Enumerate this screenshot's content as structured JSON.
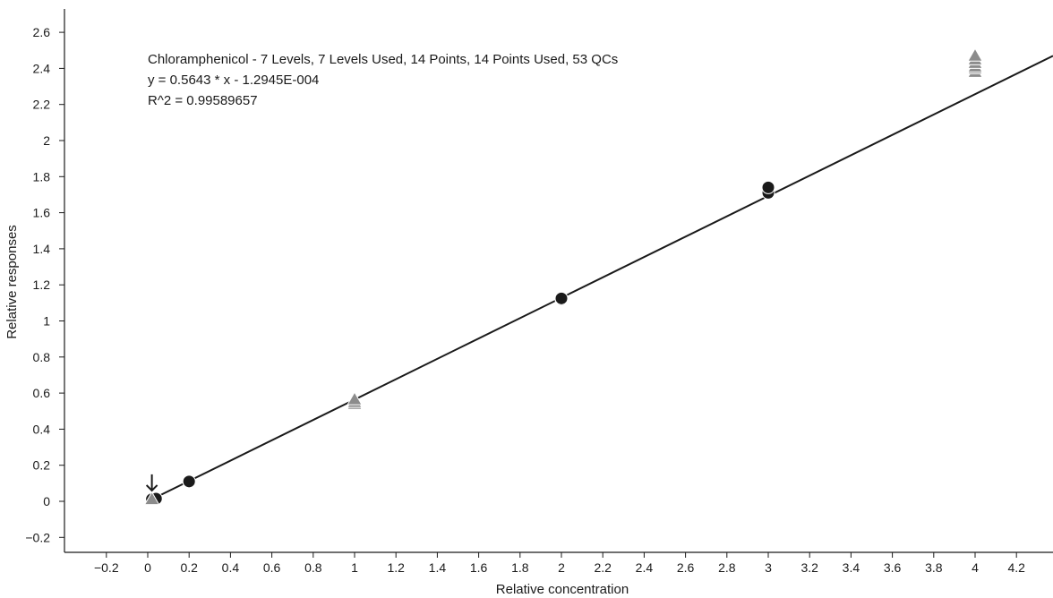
{
  "chart_data": {
    "type": "scatter",
    "title": "",
    "xlabel": "Relative concentration",
    "ylabel": "Relative responses",
    "xlim": [
      -0.35,
      4.35
    ],
    "ylim": [
      -0.25,
      2.77
    ],
    "x_ticks": [
      -0.2,
      0,
      0.2,
      0.4,
      0.6,
      0.8,
      1,
      1.2,
      1.4,
      1.6,
      1.8,
      2,
      2.2,
      2.4,
      2.6,
      2.8,
      3,
      3.2,
      3.4,
      3.6,
      3.8,
      4,
      4.2
    ],
    "x_tick_labels": [
      "−0.2",
      "0",
      "0.2",
      "0.4",
      "0.6",
      "0.8",
      "1",
      "1.2",
      "1.4",
      "1.6",
      "1.8",
      "2",
      "2.2",
      "2.4",
      "2.6",
      "2.8",
      "3",
      "3.2",
      "3.4",
      "3.6",
      "3.8",
      "4",
      "4.2"
    ],
    "y_ticks": [
      -0.2,
      0,
      0.2,
      0.4,
      0.6,
      0.8,
      1,
      1.2,
      1.4,
      1.6,
      1.8,
      2,
      2.2,
      2.4,
      2.6
    ],
    "y_tick_labels": [
      "−0.2",
      "0",
      "0.2",
      "0.4",
      "0.6",
      "0.8",
      "1",
      "1.2",
      "1.4",
      "1.6",
      "1.8",
      "2",
      "2.2",
      "2.4",
      "2.6"
    ],
    "grid": false,
    "annotations": [
      "Chloramphenicol - 7 Levels, 7 Levels Used, 14 Points, 14 Points Used, 53 QCs",
      "y = 0.5643 * x  - 1.2945E-004",
      "R^2 = 0.99589657"
    ],
    "fit_line": {
      "slope": 0.5643,
      "intercept": -0.00012945
    },
    "series": [
      {
        "marker": "circle",
        "color": "#1a1a1a",
        "x": [
          0.02,
          0.04,
          0.2,
          0.2,
          2.0,
          2.0,
          3.0,
          3.0
        ],
        "y": [
          0.012,
          0.015,
          0.108,
          0.11,
          1.12,
          1.125,
          1.71,
          1.74
        ]
      },
      {
        "marker": "triangle",
        "color": "#8c8c8c",
        "x": [
          0.02,
          0.02,
          1.0,
          1.0,
          1.0,
          4.0,
          4.0,
          4.0,
          4.0,
          4.0,
          4.0
        ],
        "y": [
          0.008,
          0.012,
          0.54,
          0.55,
          0.565,
          2.38,
          2.4,
          2.41,
          2.43,
          2.45,
          2.47
        ]
      }
    ],
    "marker_arrow": {
      "x": 0.02,
      "y": 0.06
    }
  }
}
